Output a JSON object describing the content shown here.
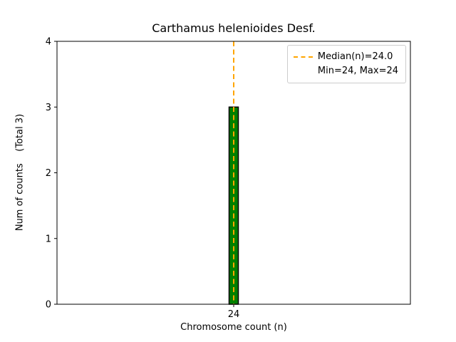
{
  "chart_data": {
    "type": "bar",
    "title": "Carthamus helenioides Desf.",
    "xlabel": "Chromosome count (n)",
    "ylabel": "Num of counts    (Total 3)",
    "categories": [
      "24"
    ],
    "values": [
      3
    ],
    "ylim": [
      0,
      4
    ],
    "yticks": [
      0,
      1,
      2,
      3,
      4
    ],
    "grid": false,
    "bar_color": "#008000",
    "bar_edge_color": "#000000",
    "median_line": {
      "x": "24",
      "value": 24.0,
      "color": "#FFA500",
      "style": "dashed"
    },
    "legend": {
      "position": "upper right",
      "entries": [
        {
          "label": "Median(n)=24.0",
          "marker": "dashed-line",
          "color": "#FFA500"
        },
        {
          "label": "Min=24, Max=24",
          "marker": "none",
          "color": ""
        }
      ]
    }
  }
}
